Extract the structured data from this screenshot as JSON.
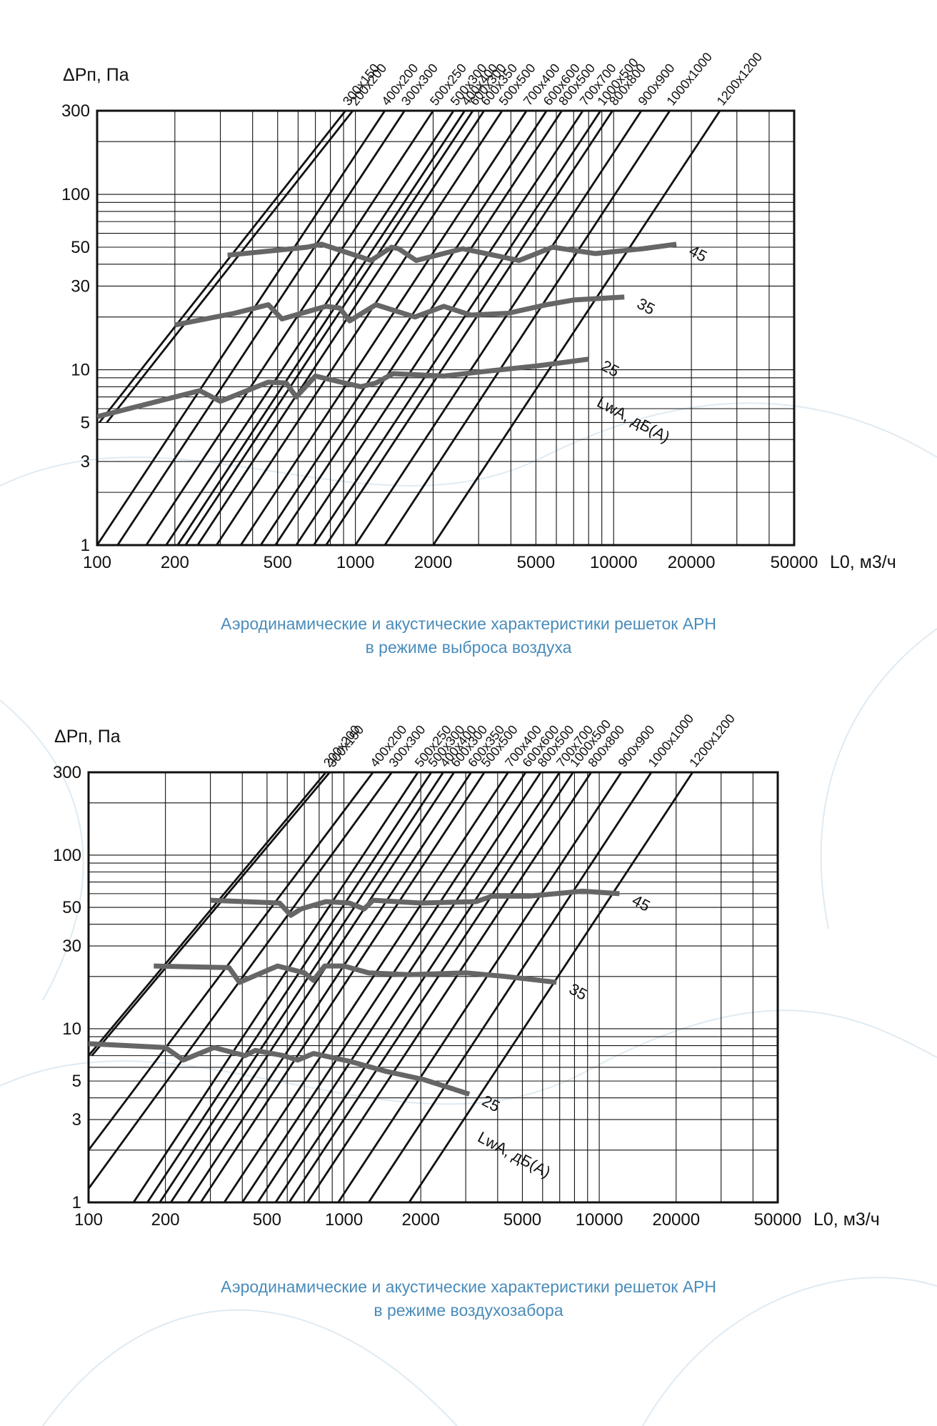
{
  "colors": {
    "caption": "#4a8cba",
    "axis": "#111111",
    "grid": "#111111",
    "series_line": "#111111",
    "noise_curve": "#666666",
    "background_decoration": "#dfeaf2"
  },
  "chart_data": [
    {
      "type": "line",
      "title": "",
      "caption": [
        "Аэродинамические и акустические характеристики решеток АРН",
        "в режиме выброса воздуха"
      ],
      "ylabel": "ΔPп, Па",
      "xlabel": "L0, м3/ч",
      "x_scale": "log",
      "y_scale": "log",
      "xlim": [
        100,
        50000
      ],
      "ylim": [
        1,
        300
      ],
      "x_ticks": [
        100,
        200,
        500,
        1000,
        2000,
        5000,
        10000,
        20000,
        50000
      ],
      "y_ticks": [
        1,
        3,
        5,
        10,
        30,
        50,
        100,
        300
      ],
      "grid": true,
      "series": [
        {
          "name": "300x150",
          "x": [
            102,
            915
          ],
          "y": [
            5,
            300
          ]
        },
        {
          "name": "200x200",
          "x": [
            109,
            977
          ],
          "y": [
            5,
            300
          ]
        },
        {
          "name": "400x200",
          "x": [
            100,
            1300
          ],
          "y": [
            1,
            300
          ]
        },
        {
          "name": "300x300",
          "x": [
            120,
            1550
          ],
          "y": [
            1,
            300
          ]
        },
        {
          "name": "500x250",
          "x": [
            155,
            2000
          ],
          "y": [
            1,
            300
          ]
        },
        {
          "name": "500x300",
          "x": [
            185,
            2400
          ],
          "y": [
            1,
            300
          ]
        },
        {
          "name": "400x400",
          "x": [
            205,
            2650
          ],
          "y": [
            1,
            300
          ]
        },
        {
          "name": "600x300",
          "x": [
            220,
            2850
          ],
          "y": [
            1,
            300
          ]
        },
        {
          "name": "600x350",
          "x": [
            245,
            3150
          ],
          "y": [
            1,
            300
          ]
        },
        {
          "name": "500x500",
          "x": [
            290,
            3700
          ],
          "y": [
            1,
            300
          ]
        },
        {
          "name": "700x400",
          "x": [
            360,
            4600
          ],
          "y": [
            1,
            300
          ]
        },
        {
          "name": "600x600",
          "x": [
            430,
            5500
          ],
          "y": [
            1,
            300
          ]
        },
        {
          "name": "800x500",
          "x": [
            490,
            6300
          ],
          "y": [
            1,
            300
          ]
        },
        {
          "name": "700x700",
          "x": [
            590,
            7600
          ],
          "y": [
            1,
            300
          ]
        },
        {
          "name": "1000x500",
          "x": [
            690,
            8900
          ],
          "y": [
            1,
            300
          ]
        },
        {
          "name": "800x800",
          "x": [
            770,
            9900
          ],
          "y": [
            1,
            300
          ]
        },
        {
          "name": "900x900",
          "x": [
            1000,
            12800
          ],
          "y": [
            1,
            300
          ]
        },
        {
          "name": "1000x1000",
          "x": [
            1300,
            16500
          ],
          "y": [
            1,
            300
          ]
        },
        {
          "name": "1200x1200",
          "x": [
            2000,
            25800
          ],
          "y": [
            1,
            300
          ]
        }
      ],
      "noise_curves": {
        "label": "LwA, дБ(А)",
        "curves": [
          {
            "name": "45",
            "x": [
              320,
              650,
              740,
              1150,
              1380,
              1470,
              1720,
              2600,
              4300,
              5800,
              8500,
              13000,
              17500
            ],
            "y": [
              45,
              50,
              52,
              42,
              50,
              49,
              42,
              49,
              42,
              50,
              46,
              49,
              52
            ]
          },
          {
            "name": "35",
            "x": [
              200,
              340,
              460,
              520,
              770,
              870,
              950,
              1200,
              1700,
              2200,
              2800,
              3900,
              5500,
              7000,
              11000
            ],
            "y": [
              18,
              21,
              23.5,
              19.5,
              23,
              22.5,
              19,
              23.5,
              20,
              23,
              20.5,
              21,
              23.5,
              25,
              26
            ]
          },
          {
            "name": "25",
            "x": [
              100,
              250,
              300,
              460,
              540,
              590,
              700,
              850,
              1050,
              1200,
              1400,
              2200,
              3000,
              5000,
              8000
            ],
            "y": [
              5.4,
              7.6,
              6.6,
              8.5,
              8.4,
              7,
              9.2,
              8.6,
              8,
              8.4,
              9.5,
              9.2,
              9.7,
              10.5,
              11.5
            ]
          }
        ],
        "label_values": [
          "45",
          "35",
          "25"
        ]
      }
    },
    {
      "type": "line",
      "title": "",
      "caption": [
        "Аэродинамические и акустические характеристики решеток АРН",
        "в режиме воздухозабора"
      ],
      "ylabel": "ΔPп, Па",
      "xlabel": "L0, м3/ч",
      "x_scale": "log",
      "y_scale": "log",
      "xlim": [
        100,
        50000
      ],
      "ylim": [
        1,
        300
      ],
      "x_ticks": [
        100,
        200,
        500,
        1000,
        2000,
        5000,
        10000,
        20000,
        50000
      ],
      "y_ticks": [
        1,
        3,
        5,
        10,
        30,
        50,
        100,
        300
      ],
      "grid": true,
      "series": [
        {
          "name": "200x200",
          "x": [
            100,
            850
          ],
          "y": [
            7,
            300
          ]
        },
        {
          "name": "300x150",
          "x": [
            103,
            880
          ],
          "y": [
            7,
            300
          ]
        },
        {
          "name": "400x200",
          "x": [
            100,
            1300
          ],
          "y": [
            2,
            300
          ]
        },
        {
          "name": "300x300",
          "x": [
            100,
            1540
          ],
          "y": [
            1.2,
            300
          ]
        },
        {
          "name": "500x250",
          "x": [
            150,
            1950
          ],
          "y": [
            1,
            300
          ]
        },
        {
          "name": "500x300",
          "x": [
            170,
            2200
          ],
          "y": [
            1,
            300
          ]
        },
        {
          "name": "400x400",
          "x": [
            190,
            2450
          ],
          "y": [
            1,
            300
          ]
        },
        {
          "name": "600x300",
          "x": [
            210,
            2700
          ],
          "y": [
            1,
            300
          ]
        },
        {
          "name": "600x350",
          "x": [
            245,
            3150
          ],
          "y": [
            1,
            300
          ]
        },
        {
          "name": "500x500",
          "x": [
            275,
            3550
          ],
          "y": [
            1,
            300
          ]
        },
        {
          "name": "700x400",
          "x": [
            340,
            4400
          ],
          "y": [
            1,
            300
          ]
        },
        {
          "name": "600x600",
          "x": [
            400,
            5150
          ],
          "y": [
            1,
            300
          ]
        },
        {
          "name": "800x500",
          "x": [
            460,
            5900
          ],
          "y": [
            1,
            300
          ]
        },
        {
          "name": "700x700",
          "x": [
            540,
            7000
          ],
          "y": [
            1,
            300
          ]
        },
        {
          "name": "1000x500",
          "x": [
            610,
            7900
          ],
          "y": [
            1,
            300
          ]
        },
        {
          "name": "800x800",
          "x": [
            720,
            9300
          ],
          "y": [
            1,
            300
          ]
        },
        {
          "name": "900x900",
          "x": [
            950,
            12200
          ],
          "y": [
            1,
            300
          ]
        },
        {
          "name": "1000x1000",
          "x": [
            1250,
            16000
          ],
          "y": [
            1,
            300
          ]
        },
        {
          "name": "1200x1200",
          "x": [
            1800,
            23200
          ],
          "y": [
            1,
            300
          ]
        }
      ],
      "noise_curves": {
        "label": "LwA, дБ(А)",
        "curves": [
          {
            "name": "45",
            "x": [
              300,
              560,
              620,
              680,
              850,
              1050,
              1200,
              1300,
              2000,
              3300,
              3800,
              5300,
              8600,
              12000
            ],
            "y": [
              55,
              53,
              45,
              49,
              54,
              53,
              49,
              55,
              53,
              54,
              58,
              58,
              62,
              60
            ]
          },
          {
            "name": "35",
            "x": [
              180,
              355,
              390,
              550,
              700,
              760,
              840,
              1000,
              1250,
              1800,
              3000,
              4300,
              6800
            ],
            "y": [
              23,
              22.5,
              18.5,
              23,
              21,
              19,
              23,
              23,
              21,
              20.5,
              21,
              20,
              18.5
            ]
          },
          {
            "name": "25",
            "x": [
              100,
              200,
              235,
              310,
              410,
              450,
              580,
              660,
              760,
              1050,
              1450,
              2050,
              3100
            ],
            "y": [
              8.2,
              7.8,
              6.6,
              7.8,
              7,
              7.5,
              7,
              6.6,
              7.2,
              6.5,
              5.7,
              5.1,
              4.2
            ]
          }
        ],
        "label_values": [
          "45",
          "35",
          "25"
        ]
      }
    }
  ]
}
